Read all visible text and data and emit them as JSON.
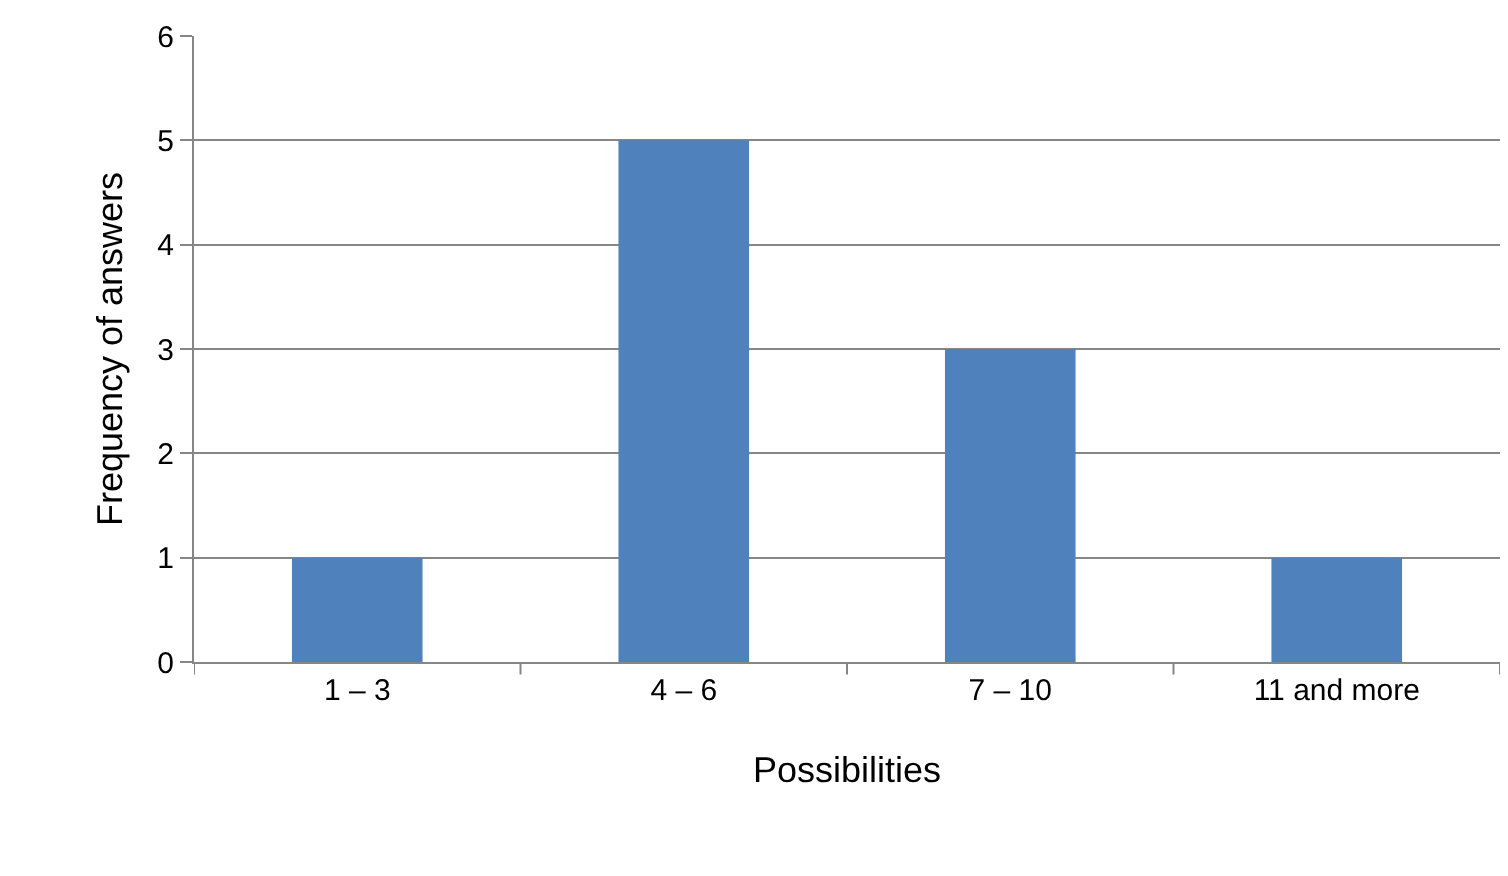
{
  "chart_data": {
    "type": "bar",
    "xlabel": "Possibilities",
    "ylabel": "Frequency of answers",
    "categories": [
      "1 – 3",
      "4 – 6",
      "7 – 10",
      "11 and more"
    ],
    "series": [
      {
        "color": "#4f81bd",
        "values": [
          1,
          5,
          3,
          1
        ]
      }
    ],
    "ylim": [
      0,
      6
    ],
    "yticks": [
      0,
      1,
      2,
      3,
      4,
      5,
      6
    ],
    "grid": "y"
  }
}
